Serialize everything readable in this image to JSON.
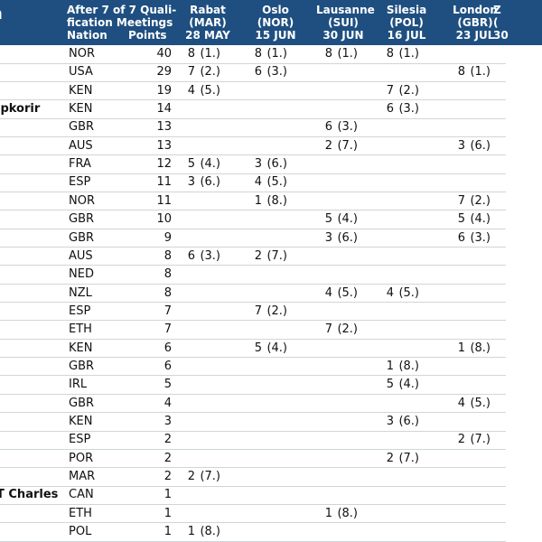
{
  "header": {
    "name_fragment": "n",
    "standing_lines": [
      "After 7 of 7 Quali-",
      "fication Meetings"
    ],
    "nation_label": "Nation",
    "points_label": "Points",
    "meetings": [
      {
        "name": "Rabat",
        "country": "(MAR)",
        "date": "28 MAY"
      },
      {
        "name": "Oslo",
        "country": "(NOR)",
        "date": "15 JUN"
      },
      {
        "name": "Lausanne",
        "country": "(SUI)",
        "date": "30 JUN"
      },
      {
        "name": "Silesia",
        "country": "(POL)",
        "date": "16 JUL"
      },
      {
        "name": "London",
        "country": "(GBR)",
        "date": "23 JUL"
      },
      {
        "name": "Z",
        "country": "(",
        "date": "30"
      }
    ]
  },
  "rows": [
    {
      "name": "",
      "nation": "NOR",
      "points": "40",
      "results": [
        [
          "8",
          "(1.)"
        ],
        [
          "8",
          "(1.)"
        ],
        [
          "8",
          "(1.)"
        ],
        [
          "8",
          "(1.)"
        ],
        [
          "",
          ""
        ]
      ]
    },
    {
      "name": "",
      "nation": "USA",
      "points": "29",
      "results": [
        [
          "7",
          "(2.)"
        ],
        [
          "6",
          "(3.)"
        ],
        [
          "",
          ""
        ],
        [
          "",
          ""
        ],
        [
          "8",
          "(1.)"
        ]
      ]
    },
    {
      "name": "",
      "nation": "KEN",
      "points": "19",
      "results": [
        [
          "4",
          "(5.)"
        ],
        [
          "",
          ""
        ],
        [
          "",
          ""
        ],
        [
          "7",
          "(2.)"
        ],
        [
          "",
          ""
        ]
      ]
    },
    {
      "name": "ipkorir",
      "nation": "KEN",
      "points": "14",
      "results": [
        [
          "",
          ""
        ],
        [
          "",
          ""
        ],
        [
          "",
          ""
        ],
        [
          "6",
          "(3.)"
        ],
        [
          "",
          ""
        ]
      ]
    },
    {
      "name": "",
      "nation": "GBR",
      "points": "13",
      "results": [
        [
          "",
          ""
        ],
        [
          "",
          ""
        ],
        [
          "6",
          "(3.)"
        ],
        [
          "",
          ""
        ],
        [
          "",
          ""
        ]
      ]
    },
    {
      "name": "",
      "nation": "AUS",
      "points": "13",
      "results": [
        [
          "",
          ""
        ],
        [
          "",
          ""
        ],
        [
          "2",
          "(7.)"
        ],
        [
          "",
          ""
        ],
        [
          "3",
          "(6.)"
        ]
      ]
    },
    {
      "name": "",
      "nation": "FRA",
      "points": "12",
      "results": [
        [
          "5",
          "(4.)"
        ],
        [
          "3",
          "(6.)"
        ],
        [
          "",
          ""
        ],
        [
          "",
          ""
        ],
        [
          "",
          ""
        ]
      ]
    },
    {
      "name": "",
      "nation": "ESP",
      "points": "11",
      "results": [
        [
          "3",
          "(6.)"
        ],
        [
          "4",
          "(5.)"
        ],
        [
          "",
          ""
        ],
        [
          "",
          ""
        ],
        [
          "",
          ""
        ]
      ]
    },
    {
      "name": "",
      "nation": "NOR",
      "points": "11",
      "results": [
        [
          "",
          ""
        ],
        [
          "1",
          "(8.)"
        ],
        [
          "",
          ""
        ],
        [
          "",
          ""
        ],
        [
          "7",
          "(2.)"
        ]
      ]
    },
    {
      "name": "",
      "nation": "GBR",
      "points": "10",
      "results": [
        [
          "",
          ""
        ],
        [
          "",
          ""
        ],
        [
          "5",
          "(4.)"
        ],
        [
          "",
          ""
        ],
        [
          "5",
          "(4.)"
        ]
      ]
    },
    {
      "name": "",
      "nation": "GBR",
      "points": "9",
      "results": [
        [
          "",
          ""
        ],
        [
          "",
          ""
        ],
        [
          "3",
          "(6.)"
        ],
        [
          "",
          ""
        ],
        [
          "6",
          "(3.)"
        ]
      ]
    },
    {
      "name": "",
      "nation": "AUS",
      "points": "8",
      "results": [
        [
          "6",
          "(3.)"
        ],
        [
          "2",
          "(7.)"
        ],
        [
          "",
          ""
        ],
        [
          "",
          ""
        ],
        [
          "",
          ""
        ]
      ]
    },
    {
      "name": "",
      "nation": "NED",
      "points": "8",
      "results": [
        [
          "",
          ""
        ],
        [
          "",
          ""
        ],
        [
          "",
          ""
        ],
        [
          "",
          ""
        ],
        [
          "",
          ""
        ]
      ]
    },
    {
      "name": "",
      "nation": "NZL",
      "points": "8",
      "results": [
        [
          "",
          ""
        ],
        [
          "",
          ""
        ],
        [
          "4",
          "(5.)"
        ],
        [
          "4",
          "(5.)"
        ],
        [
          "",
          ""
        ]
      ]
    },
    {
      "name": "",
      "nation": "ESP",
      "points": "7",
      "results": [
        [
          "",
          ""
        ],
        [
          "7",
          "(2.)"
        ],
        [
          "",
          ""
        ],
        [
          "",
          ""
        ],
        [
          "",
          ""
        ]
      ]
    },
    {
      "name": "",
      "nation": "ETH",
      "points": "7",
      "results": [
        [
          "",
          ""
        ],
        [
          "",
          ""
        ],
        [
          "7",
          "(2.)"
        ],
        [
          "",
          ""
        ],
        [
          "",
          ""
        ]
      ]
    },
    {
      "name": "",
      "nation": "KEN",
      "points": "6",
      "results": [
        [
          "",
          ""
        ],
        [
          "5",
          "(4.)"
        ],
        [
          "",
          ""
        ],
        [
          "",
          ""
        ],
        [
          "1",
          "(8.)"
        ]
      ]
    },
    {
      "name": "",
      "nation": "GBR",
      "points": "6",
      "results": [
        [
          "",
          ""
        ],
        [
          "",
          ""
        ],
        [
          "",
          ""
        ],
        [
          "1",
          "(8.)"
        ],
        [
          "",
          ""
        ]
      ]
    },
    {
      "name": "",
      "nation": "IRL",
      "points": "5",
      "results": [
        [
          "",
          ""
        ],
        [
          "",
          ""
        ],
        [
          "",
          ""
        ],
        [
          "5",
          "(4.)"
        ],
        [
          "",
          ""
        ]
      ]
    },
    {
      "name": "",
      "nation": "GBR",
      "points": "4",
      "results": [
        [
          "",
          ""
        ],
        [
          "",
          ""
        ],
        [
          "",
          ""
        ],
        [
          "",
          ""
        ],
        [
          "4",
          "(5.)"
        ]
      ]
    },
    {
      "name": "",
      "nation": "KEN",
      "points": "3",
      "results": [
        [
          "",
          ""
        ],
        [
          "",
          ""
        ],
        [
          "",
          ""
        ],
        [
          "3",
          "(6.)"
        ],
        [
          "",
          ""
        ]
      ]
    },
    {
      "name": "",
      "nation": "ESP",
      "points": "2",
      "results": [
        [
          "",
          ""
        ],
        [
          "",
          ""
        ],
        [
          "",
          ""
        ],
        [
          "",
          ""
        ],
        [
          "2",
          "(7.)"
        ]
      ]
    },
    {
      "name": "",
      "nation": "POR",
      "points": "2",
      "results": [
        [
          "",
          ""
        ],
        [
          "",
          ""
        ],
        [
          "",
          ""
        ],
        [
          "2",
          "(7.)"
        ],
        [
          "",
          ""
        ]
      ]
    },
    {
      "name": "",
      "nation": "MAR",
      "points": "2",
      "results": [
        [
          "2",
          "(7.)"
        ],
        [
          "",
          ""
        ],
        [
          "",
          ""
        ],
        [
          "",
          ""
        ],
        [
          "",
          ""
        ]
      ]
    },
    {
      "name": "T Charles",
      "nation": "CAN",
      "points": "1",
      "results": [
        [
          "",
          ""
        ],
        [
          "",
          ""
        ],
        [
          "",
          ""
        ],
        [
          "",
          ""
        ],
        [
          "",
          ""
        ]
      ]
    },
    {
      "name": "",
      "nation": "ETH",
      "points": "1",
      "results": [
        [
          "",
          ""
        ],
        [
          "",
          ""
        ],
        [
          "1",
          "(8.)"
        ],
        [
          "",
          ""
        ],
        [
          "",
          ""
        ]
      ]
    },
    {
      "name": "",
      "nation": "POL",
      "points": "1",
      "results": [
        [
          "1",
          "(8.)"
        ],
        [
          "",
          ""
        ],
        [
          "",
          ""
        ],
        [
          "",
          ""
        ],
        [
          "",
          ""
        ]
      ]
    }
  ],
  "colors": {
    "header_bg": "#1f4f80",
    "header_text": "#ffffff",
    "row_line": "#cfd6dc"
  }
}
